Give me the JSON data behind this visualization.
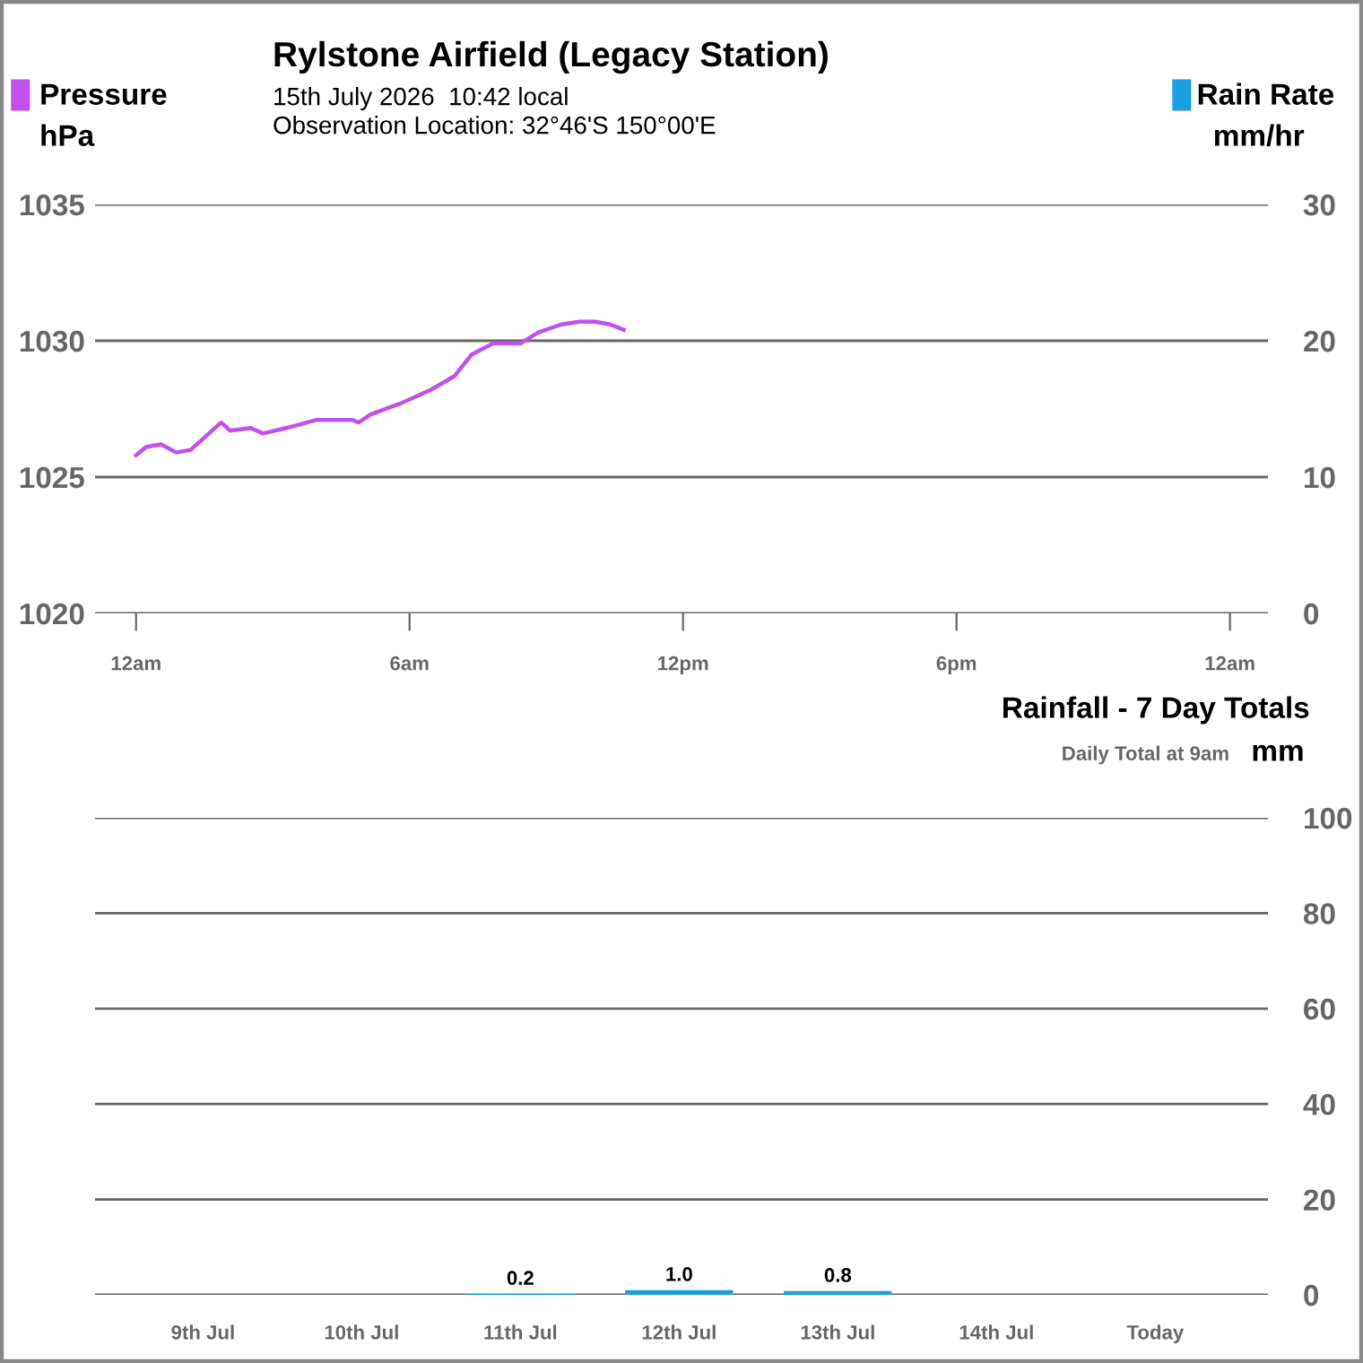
{
  "chart_data": [
    {
      "type": "line",
      "title": "Rylstone Airfield (Legacy Station)",
      "subtitle": "15th July 2026  10:42 local",
      "annotations": [
        "Observation Location: 32°46'S 150°00'E"
      ],
      "ylabel": "hPa",
      "y2label": "mm/hr",
      "xlim": [
        "2026-07-14T23:06",
        "2026-07-16T00:50"
      ],
      "xticks": [
        {
          "value": "2026-07-15T00:00",
          "label": "12am"
        },
        {
          "value": "2026-07-15T06:00",
          "label": "6am"
        },
        {
          "value": "2026-07-15T12:00",
          "label": "12pm"
        },
        {
          "value": "2026-07-15T18:00",
          "label": "6pm"
        },
        {
          "value": "2026-07-16T00:00",
          "label": "12am"
        }
      ],
      "ylim": [
        1020,
        1035
      ],
      "yticks": [
        1020,
        1025,
        1030,
        1035
      ],
      "y2lim": [
        0,
        30
      ],
      "y2ticks": [
        0,
        10,
        20,
        30
      ],
      "grid": "y",
      "line_style": "solid",
      "marker": "none",
      "series": [
        {
          "name": "Pressure",
          "color": "#c050f0",
          "x": [
            "2026-07-15T00:00",
            "2026-07-15T00:13",
            "2026-07-15T00:33",
            "2026-07-15T00:53",
            "2026-07-15T01:12",
            "2026-07-15T01:52",
            "2026-07-15T02:04",
            "2026-07-15T02:31",
            "2026-07-15T02:47",
            "2026-07-15T03:18",
            "2026-07-15T03:58",
            "2026-07-15T04:45",
            "2026-07-15T04:53",
            "2026-07-15T05:09",
            "2026-07-15T05:48",
            "2026-07-15T06:28",
            "2026-07-15T06:59",
            "2026-07-15T07:22",
            "2026-07-15T07:50",
            "2026-07-15T08:26",
            "2026-07-15T08:49",
            "2026-07-15T09:20",
            "2026-07-15T09:44",
            "2026-07-15T10:04",
            "2026-07-15T10:24",
            "2026-07-15T10:42"
          ],
          "values": [
            1025.8,
            1026.1,
            1026.2,
            1025.9,
            1026.0,
            1027.0,
            1026.7,
            1026.8,
            1026.6,
            1026.8,
            1027.1,
            1027.1,
            1027.0,
            1027.3,
            1027.7,
            1028.2,
            1028.7,
            1029.5,
            1029.9,
            1029.9,
            1030.3,
            1030.6,
            1030.7,
            1030.7,
            1030.6,
            1030.4
          ]
        },
        {
          "name": "Rain Rate",
          "color": "#1a9fe0",
          "axis": "y2"
        }
      ]
    },
    {
      "type": "bar",
      "title": "Rainfall - 7 Day Totals",
      "subtitle": "Daily Total at 9am",
      "ylabel": "mm",
      "categories": [
        "9th Jul",
        "10th Jul",
        "11th Jul",
        "12th Jul",
        "13th Jul",
        "14th Jul",
        "Today"
      ],
      "values": [
        0,
        0,
        0.2,
        1.0,
        0.8,
        0,
        0
      ],
      "value_labels": [
        null,
        null,
        "0.2",
        "1.0",
        "0.8",
        null,
        null
      ],
      "color": "#1a9fe0",
      "ylim": [
        0,
        100
      ],
      "yticks": [
        0,
        20,
        40,
        60,
        80,
        100
      ],
      "grid": "y"
    }
  ]
}
